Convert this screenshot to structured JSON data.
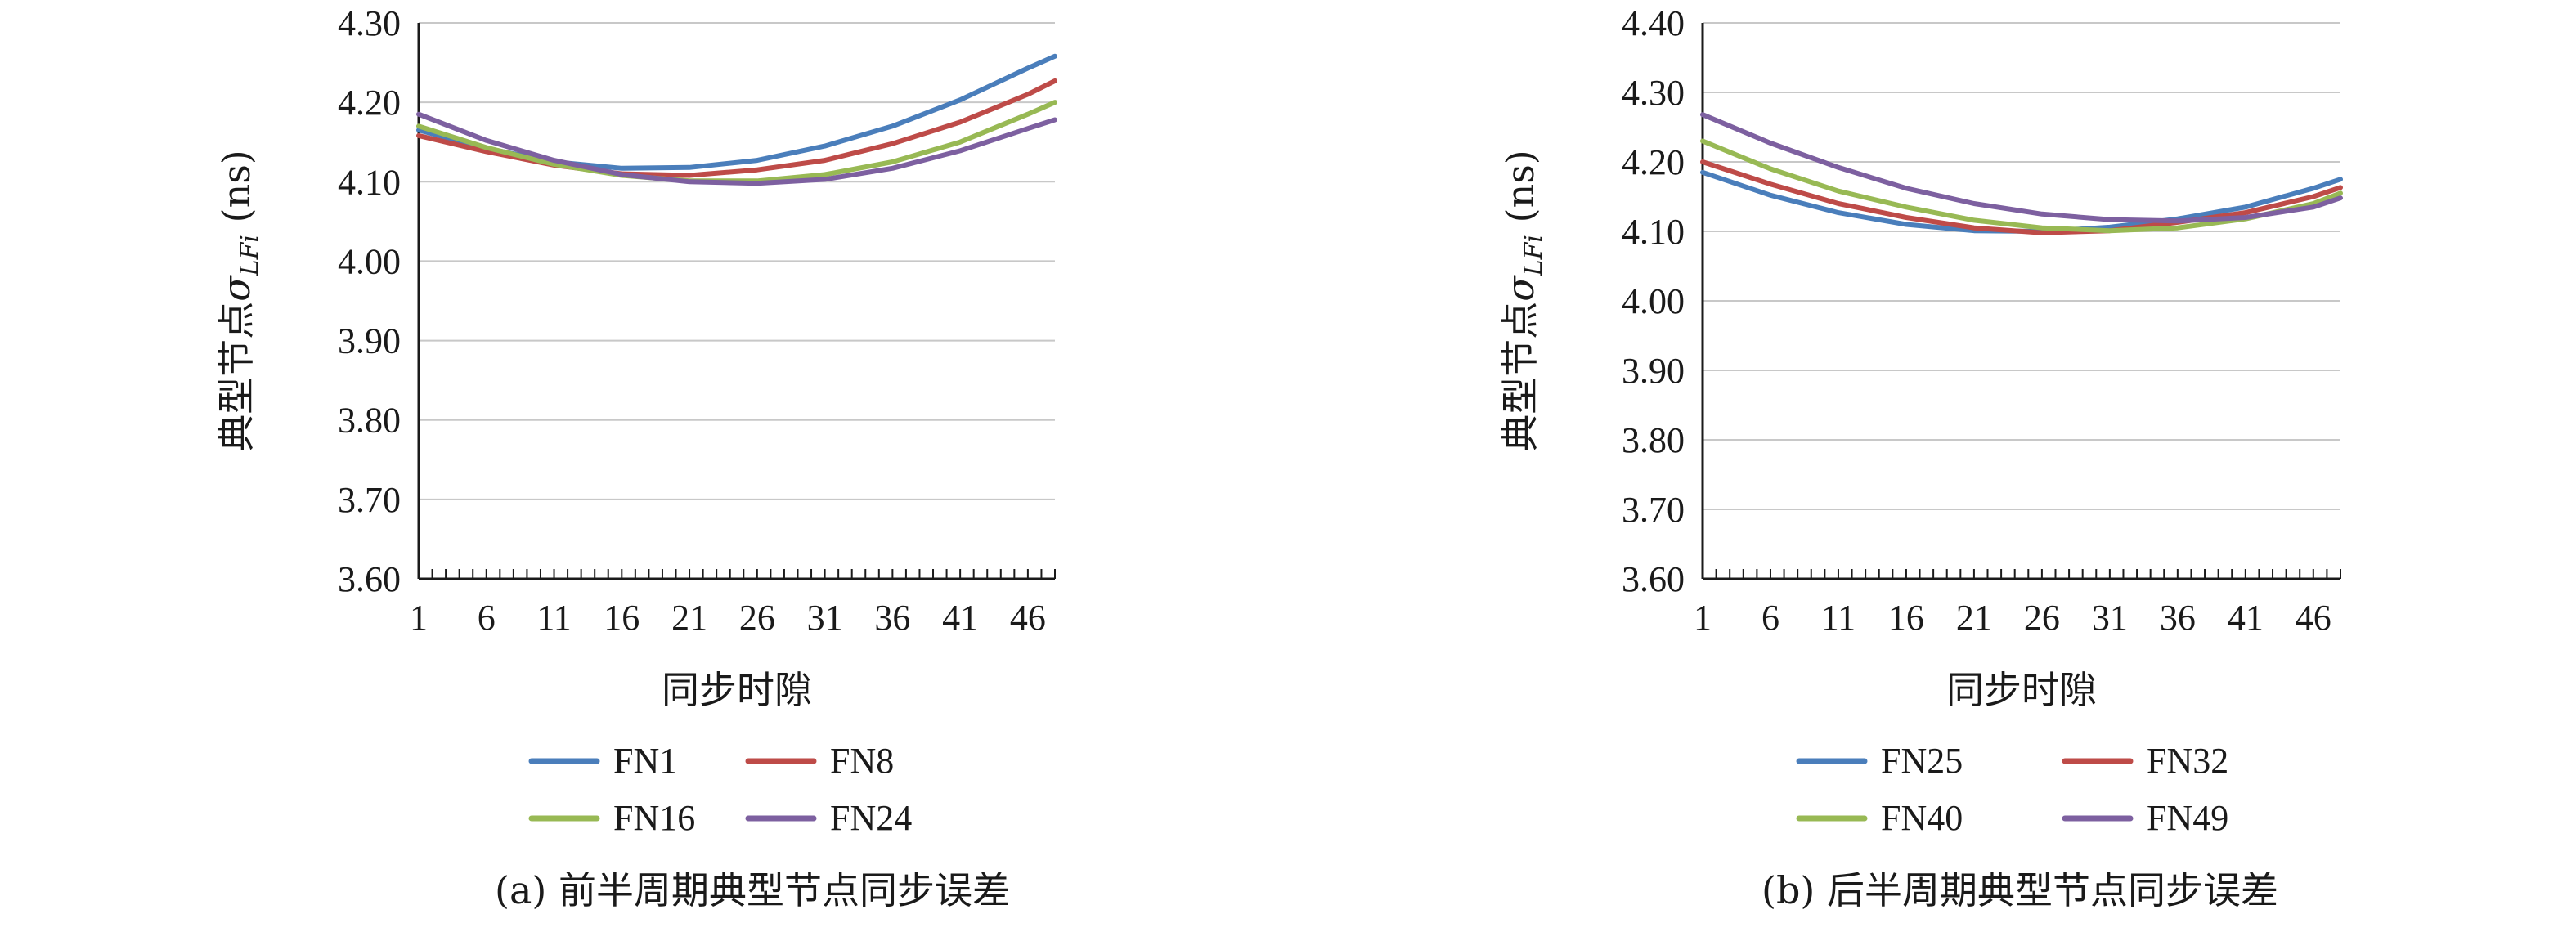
{
  "chart_data": [
    {
      "type": "line",
      "caption": "(a) 前半周期典型节点同步误差",
      "xlabel": "同步时隙",
      "ylabel": "典型节点σLFi (ns)",
      "ylabel_main": "典型节点",
      "ylabel_symbol": "σ",
      "ylabel_subscript": "LFi",
      "ylabel_unit": " (ns)",
      "x_ticks": [
        "1",
        "6",
        "11",
        "16",
        "21",
        "26",
        "31",
        "36",
        "41",
        "46"
      ],
      "y_ticks": [
        "3.60",
        "3.70",
        "3.80",
        "3.90",
        "4.00",
        "4.10",
        "4.20",
        "4.30"
      ],
      "xlim": [
        1,
        48
      ],
      "ylim": [
        3.6,
        4.3
      ],
      "grid": true,
      "legend_position": "bottom",
      "series": [
        {
          "name": "FN1",
          "color": "#4a7ebb",
          "x": [
            1,
            6,
            11,
            16,
            21,
            26,
            31,
            36,
            41,
            46,
            48
          ],
          "y": [
            4.165,
            4.142,
            4.125,
            4.117,
            4.118,
            4.127,
            4.145,
            4.17,
            4.203,
            4.243,
            4.258
          ]
        },
        {
          "name": "FN8",
          "color": "#be4b48",
          "x": [
            1,
            6,
            11,
            16,
            21,
            26,
            31,
            36,
            41,
            46,
            48
          ],
          "y": [
            4.158,
            4.138,
            4.121,
            4.11,
            4.108,
            4.115,
            4.127,
            4.148,
            4.175,
            4.21,
            4.227
          ]
        },
        {
          "name": "FN16",
          "color": "#98b954",
          "x": [
            1,
            6,
            11,
            16,
            21,
            26,
            31,
            36,
            41,
            46,
            48
          ],
          "y": [
            4.17,
            4.143,
            4.122,
            4.108,
            4.101,
            4.101,
            4.109,
            4.125,
            4.15,
            4.185,
            4.2
          ]
        },
        {
          "name": "FN24",
          "color": "#7d60a0",
          "x": [
            1,
            6,
            11,
            16,
            21,
            26,
            31,
            36,
            41,
            46,
            48
          ],
          "y": [
            4.185,
            4.152,
            4.127,
            4.109,
            4.1,
            4.098,
            4.103,
            4.117,
            4.139,
            4.167,
            4.178
          ]
        }
      ]
    },
    {
      "type": "line",
      "caption": "(b) 后半周期典型节点同步误差",
      "xlabel": "同步时隙",
      "ylabel": "典型节点σLFi (ns)",
      "ylabel_main": "典型节点",
      "ylabel_symbol": "σ",
      "ylabel_subscript": "LFi",
      "ylabel_unit": " (ns)",
      "x_ticks": [
        "1",
        "6",
        "11",
        "16",
        "21",
        "26",
        "31",
        "36",
        "41",
        "46"
      ],
      "y_ticks": [
        "3.60",
        "3.70",
        "3.80",
        "3.90",
        "4.00",
        "4.10",
        "4.20",
        "4.30",
        "4.40"
      ],
      "xlim": [
        1,
        48
      ],
      "ylim": [
        3.6,
        4.4
      ],
      "grid": true,
      "legend_position": "bottom",
      "series": [
        {
          "name": "FN25",
          "color": "#4a7ebb",
          "x": [
            1,
            6,
            11,
            16,
            21,
            26,
            31,
            36,
            41,
            46,
            48
          ],
          "y": [
            4.185,
            4.152,
            4.127,
            4.11,
            4.101,
            4.1,
            4.106,
            4.118,
            4.135,
            4.162,
            4.175
          ]
        },
        {
          "name": "FN32",
          "color": "#be4b48",
          "x": [
            1,
            6,
            11,
            16,
            21,
            26,
            31,
            36,
            41,
            46,
            48
          ],
          "y": [
            4.2,
            4.168,
            4.14,
            4.12,
            4.105,
            4.098,
            4.101,
            4.113,
            4.127,
            4.15,
            4.163
          ]
        },
        {
          "name": "FN40",
          "color": "#98b954",
          "x": [
            1,
            6,
            11,
            16,
            21,
            26,
            31,
            36,
            41,
            46,
            48
          ],
          "y": [
            4.23,
            4.19,
            4.158,
            4.135,
            4.116,
            4.105,
            4.101,
            4.105,
            4.118,
            4.14,
            4.155
          ]
        },
        {
          "name": "FN49",
          "color": "#7d60a0",
          "x": [
            1,
            6,
            11,
            16,
            21,
            26,
            31,
            36,
            41,
            46,
            48
          ],
          "y": [
            4.268,
            4.227,
            4.192,
            4.162,
            4.14,
            4.125,
            4.117,
            4.115,
            4.12,
            4.135,
            4.148
          ]
        }
      ]
    }
  ]
}
